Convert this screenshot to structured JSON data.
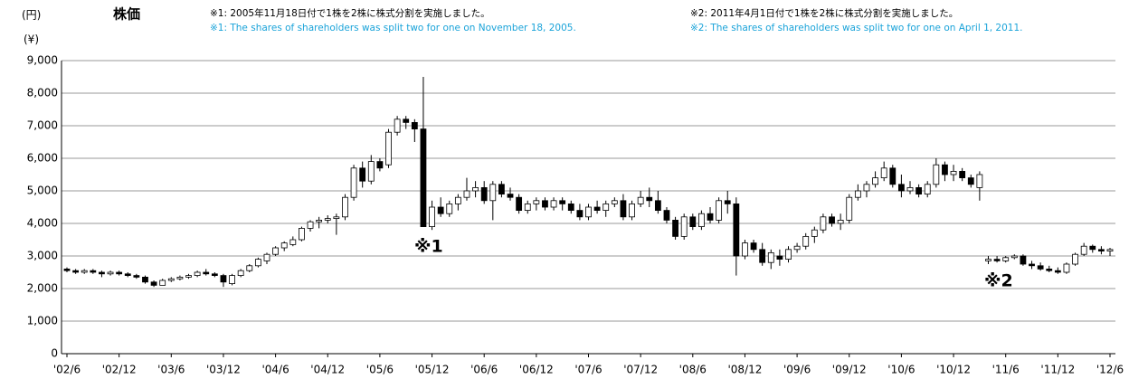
{
  "chart_data": {
    "type": "candlestick",
    "title": "株価",
    "y_label": "(円)",
    "y_label_en": "(¥)",
    "annotations": [
      "※1: 2005年11月18日付で1株を2株に株式分割を実施しました。",
      "※1: The shares of shareholders was split two for one on November 18, 2005.",
      "※2: 2011年4月1日付で1株を2株に株式分割を実施しました。",
      "※2: The shares of shareholders was split two for one on April 1, 2011."
    ],
    "markers": [
      "※1",
      "※2"
    ],
    "up_color": "#ffffff",
    "down_color": "#000000",
    "marker_color": "#1aa3d9",
    "grid": true,
    "ylim": [
      0,
      9000
    ],
    "yticks": [
      0,
      {
        "value": 1000,
        "label": "1,000"
      },
      {
        "value": 2000,
        "label": "2,000"
      },
      {
        "value": 3000,
        "label": "3,000"
      },
      {
        "value": 4000,
        "label": "4,000"
      },
      {
        "value": 5000,
        "label": "5,000"
      },
      {
        "value": 6000,
        "label": "6,000"
      },
      {
        "value": 7000,
        "label": "7,000"
      },
      {
        "value": 8000,
        "label": "8,000"
      },
      {
        "value": 9000,
        "label": "9,000"
      }
    ],
    "categories": [
      "'02/6",
      null,
      null,
      null,
      null,
      null,
      "'02/12",
      null,
      null,
      null,
      null,
      null,
      "'03/6",
      null,
      null,
      null,
      null,
      null,
      "'03/12",
      null,
      null,
      null,
      null,
      null,
      "'04/6",
      null,
      null,
      null,
      null,
      null,
      "'04/12",
      null,
      null,
      null,
      null,
      null,
      "'05/6",
      null,
      null,
      null,
      null,
      null,
      "'05/12",
      null,
      null,
      null,
      null,
      null,
      "'06/6",
      null,
      null,
      null,
      null,
      null,
      "'06/12",
      null,
      null,
      null,
      null,
      null,
      "'07/6",
      null,
      null,
      null,
      null,
      null,
      "'07/12",
      null,
      null,
      null,
      null,
      null,
      "'08/6",
      null,
      null,
      null,
      null,
      null,
      "'08/12",
      null,
      null,
      null,
      null,
      null,
      "'09/6",
      null,
      null,
      null,
      null,
      null,
      "'09/12",
      null,
      null,
      null,
      null,
      null,
      "'10/6",
      null,
      null,
      null,
      null,
      null,
      "'10/12",
      null,
      null,
      null,
      null,
      null,
      "'11/6",
      null,
      null,
      null,
      null,
      null,
      "'11/12",
      null,
      null,
      null,
      null,
      null,
      "'12/6"
    ],
    "open": [
      2600,
      2550,
      2500,
      2550,
      2500,
      2450,
      2500,
      2450,
      2400,
      2350,
      2200,
      2100,
      2250,
      2300,
      2350,
      2400,
      2500,
      2450,
      2400,
      2150,
      2400,
      2550,
      2700,
      2850,
      3050,
      3250,
      3350,
      3500,
      3850,
      4050,
      4100,
      4150,
      4200,
      4800,
      5700,
      5300,
      5900,
      5800,
      6800,
      7200,
      7100,
      6900,
      3900,
      4500,
      4300,
      4600,
      4800,
      5000,
      5100,
      4700,
      5200,
      4900,
      4800,
      4400,
      4600,
      4700,
      4500,
      4700,
      4600,
      4400,
      4200,
      4500,
      4400,
      4600,
      4700,
      4200,
      4600,
      4800,
      4700,
      4400,
      4100,
      3600,
      4200,
      3900,
      4300,
      4100,
      4700,
      4600,
      3000,
      3400,
      3200,
      2800,
      3000,
      2900,
      3200,
      3300,
      3600,
      3800,
      4200,
      4000,
      4100,
      4800,
      5000,
      5200,
      5400,
      5700,
      5200,
      5000,
      5100,
      4900,
      5200,
      5800,
      5500,
      5600,
      5400,
      5100,
      2850,
      2900,
      2850,
      2950,
      3000,
      2750,
      2700,
      2600,
      2550,
      2500,
      2750,
      3050,
      3300,
      3200,
      3150
    ],
    "high": [
      2650,
      2600,
      2600,
      2600,
      2550,
      2550,
      2550,
      2500,
      2450,
      2400,
      2250,
      2300,
      2350,
      2400,
      2450,
      2550,
      2600,
      2500,
      2450,
      2450,
      2600,
      2750,
      2950,
      3100,
      3300,
      3450,
      3600,
      3900,
      4100,
      4200,
      4250,
      4300,
      4900,
      5800,
      5900,
      6100,
      6000,
      6900,
      7300,
      7300,
      7200,
      8500,
      4700,
      4800,
      4700,
      4900,
      5400,
      5300,
      5300,
      5300,
      5300,
      5100,
      4900,
      4700,
      4800,
      4800,
      4800,
      4800,
      4700,
      4600,
      4600,
      4700,
      4700,
      4800,
      4900,
      4700,
      5000,
      5100,
      5000,
      4500,
      4200,
      4300,
      4300,
      4400,
      4500,
      4800,
      5000,
      4800,
      3500,
      3500,
      3400,
      3200,
      3200,
      3300,
      3400,
      3700,
      3900,
      4300,
      4300,
      4300,
      4900,
      5200,
      5300,
      5600,
      5900,
      5800,
      5500,
      5300,
      5200,
      5300,
      6000,
      5900,
      5800,
      5700,
      5500,
      5600,
      3000,
      3000,
      3000,
      3050,
      3050,
      2850,
      2800,
      2700,
      2650,
      2800,
      3100,
      3400,
      3350,
      3300,
      3250
    ],
    "low": [
      2500,
      2450,
      2450,
      2450,
      2350,
      2400,
      2400,
      2350,
      2300,
      2150,
      2050,
      2100,
      2200,
      2250,
      2300,
      2350,
      2400,
      2350,
      2050,
      2100,
      2350,
      2500,
      2650,
      2750,
      3000,
      3150,
      3300,
      3450,
      3750,
      3850,
      4000,
      3650,
      4100,
      4700,
      5100,
      5200,
      5600,
      5700,
      6700,
      6900,
      6500,
      3900,
      3800,
      4200,
      4200,
      4400,
      4700,
      4800,
      4600,
      4100,
      4800,
      4700,
      4300,
      4300,
      4400,
      4400,
      4400,
      4400,
      4300,
      4100,
      4100,
      4300,
      4200,
      4500,
      4100,
      4100,
      4500,
      4500,
      4300,
      4000,
      3500,
      3500,
      3800,
      3800,
      4000,
      4000,
      4300,
      2400,
      2900,
      3100,
      2700,
      2600,
      2700,
      2800,
      3100,
      3200,
      3400,
      3700,
      3900,
      3800,
      4000,
      4700,
      4800,
      5100,
      5300,
      5100,
      4800,
      4900,
      4800,
      4800,
      5100,
      5300,
      5300,
      5300,
      5100,
      4700,
      2750,
      2800,
      2800,
      2900,
      2700,
      2600,
      2550,
      2500,
      2450,
      2450,
      2700,
      3000,
      3100,
      3050,
      3000
    ],
    "close": [
      2550,
      2500,
      2550,
      2500,
      2450,
      2500,
      2450,
      2400,
      2350,
      2200,
      2100,
      2250,
      2300,
      2350,
      2400,
      2500,
      2450,
      2400,
      2200,
      2400,
      2550,
      2700,
      2900,
      3050,
      3250,
      3400,
      3500,
      3850,
      4050,
      4100,
      4150,
      4200,
      4800,
      5700,
      5300,
      5900,
      5700,
      6800,
      7200,
      7100,
      6900,
      3900,
      4500,
      4300,
      4600,
      4800,
      5000,
      5100,
      4700,
      5200,
      4900,
      4800,
      4400,
      4600,
      4700,
      4500,
      4700,
      4600,
      4400,
      4200,
      4500,
      4400,
      4600,
      4700,
      4200,
      4600,
      4800,
      4700,
      4400,
      4100,
      3600,
      4200,
      3900,
      4300,
      4100,
      4700,
      4600,
      3000,
      3400,
      3200,
      2800,
      3100,
      2900,
      3200,
      3300,
      3600,
      3800,
      4200,
      4000,
      4100,
      4800,
      5000,
      5200,
      5400,
      5700,
      5200,
      5000,
      5100,
      4900,
      5200,
      5800,
      5500,
      5600,
      5400,
      5200,
      5500,
      2900,
      2850,
      2950,
      3000,
      2750,
      2700,
      2600,
      2550,
      2500,
      2750,
      3050,
      3300,
      3200,
      3150,
      3200
    ]
  }
}
